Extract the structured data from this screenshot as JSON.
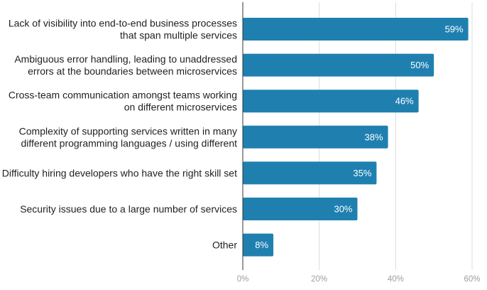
{
  "chart_data": {
    "type": "bar",
    "orientation": "horizontal",
    "categories": [
      [
        "Lack of visibility into end-to-end business processes",
        "that span multiple services"
      ],
      [
        "Ambiguous error handling, leading to unaddressed",
        "errors at the boundaries between microservices"
      ],
      [
        "Cross-team communication amongst teams working",
        "on different microservices"
      ],
      [
        "Complexity of supporting services written in many",
        "different programming languages / using different"
      ],
      [
        "Difficulty hiring developers who have the right skill set"
      ],
      [
        "Security issues due to a large number of services"
      ],
      [
        "Other"
      ]
    ],
    "values": [
      59,
      50,
      46,
      38,
      35,
      30,
      8
    ],
    "value_labels": [
      "59%",
      "50%",
      "46%",
      "38%",
      "35%",
      "30%",
      "8%"
    ],
    "xlim": [
      0,
      60
    ],
    "xticks": [
      0,
      20,
      40,
      60
    ],
    "xtick_labels": [
      "0%",
      "20%",
      "40%",
      "60%"
    ],
    "grid": true,
    "legend": "none",
    "title": "",
    "xlabel": "",
    "ylabel": "",
    "colors": {
      "bar": "#1f80b0",
      "grid": "#dcdcdc",
      "axis": "#333333",
      "category_text": "#222222",
      "tick_text": "#9e9e9e",
      "value_text": "#ffffff"
    }
  }
}
